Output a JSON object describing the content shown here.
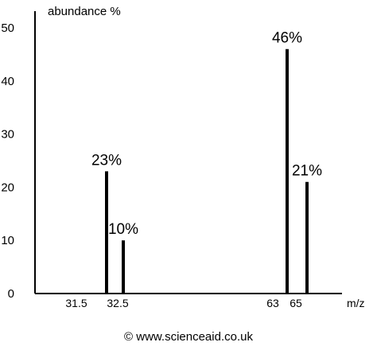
{
  "chart_data": {
    "type": "bar",
    "ylabel": "abundance %",
    "xlabel": "m/z",
    "ylim": [
      0,
      50
    ],
    "yticks": [
      "0",
      "10",
      "20",
      "30",
      "40",
      "50"
    ],
    "grid": false,
    "categories": [
      "31.5",
      "32.5",
      "63",
      "65"
    ],
    "bars": [
      {
        "x": 31.5,
        "value": 23,
        "label": "23%"
      },
      {
        "x": 32.5,
        "value": 10,
        "label": "10%"
      },
      {
        "x": 63,
        "value": 46,
        "label": "46%"
      },
      {
        "x": 65,
        "value": 21,
        "label": "21%"
      }
    ]
  },
  "footer": {
    "credit": "© www.scienceaid.co.uk"
  }
}
